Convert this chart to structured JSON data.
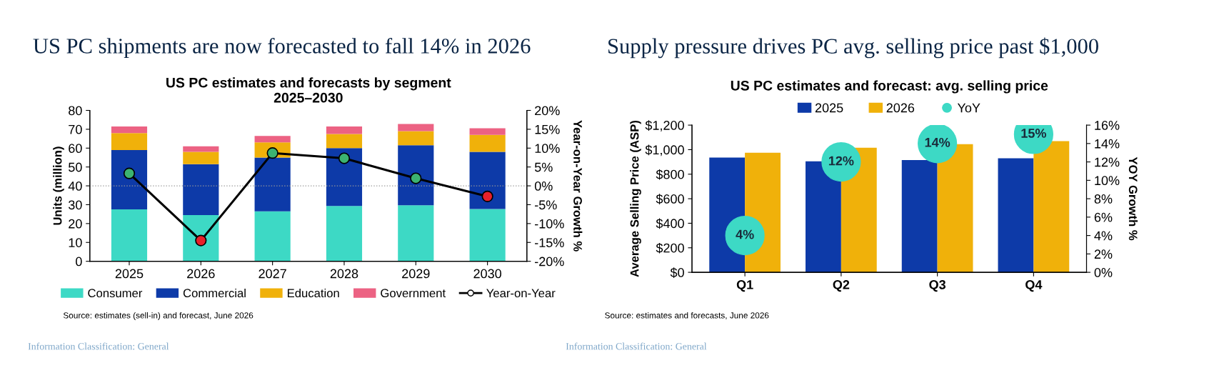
{
  "chart_data": [
    {
      "type": "bar",
      "title": "US PC shipments are now forecasted to fall 14% in 2026",
      "subtitle": "US PC estimates and forecasts by segment\n2025–2030",
      "ylabel": "Units (million)",
      "y2label": "Year-on-Year Growth %",
      "categories": [
        "2025",
        "2026",
        "2027",
        "2028",
        "2029",
        "2030"
      ],
      "stacked": true,
      "series": [
        {
          "name": "Consumer",
          "color": "#3dd9c5",
          "values": [
            27.5,
            24.5,
            26.5,
            29.3,
            29.7,
            27.7
          ]
        },
        {
          "name": "Commercial",
          "color": "#0d3aa8",
          "values": [
            31.5,
            27,
            28.5,
            30.7,
            31.8,
            30.3
          ]
        },
        {
          "name": "Education",
          "color": "#f0b10a",
          "values": [
            9,
            6.5,
            8,
            7.5,
            7.5,
            9
          ]
        },
        {
          "name": "Government",
          "color": "#ec6283",
          "values": [
            3.5,
            3,
            3.5,
            4,
            3.8,
            3.5
          ]
        },
        {
          "name": "Year-on-Year",
          "type": "line",
          "axis": "y2",
          "color": "#000000",
          "marker": "circle",
          "colors": [
            "#3cb371",
            "#e8202a",
            "#3cb371",
            "#3cb371",
            "#3cb371",
            "#e8202a"
          ],
          "values": [
            3.3,
            -14.5,
            8.7,
            7.3,
            2,
            -2.8
          ]
        }
      ],
      "ylim": [
        0,
        80
      ],
      "yticks": [
        0,
        10,
        20,
        30,
        40,
        50,
        60,
        70,
        80
      ],
      "y2lim": [
        -20,
        20
      ],
      "y2ticks": [
        {
          "value": -20,
          "label": "-20%"
        },
        {
          "value": -15,
          "label": "-15%"
        },
        {
          "value": -10,
          "label": "-10%"
        },
        {
          "value": -5,
          "label": "-5%"
        },
        {
          "value": 0,
          "label": "0%"
        },
        {
          "value": 5,
          "label": "5%"
        },
        {
          "value": 10,
          "label": "10%"
        },
        {
          "value": 15,
          "label": "15%"
        },
        {
          "value": 20,
          "label": "20%"
        }
      ],
      "ref_lines": [
        {
          "axis": "y2",
          "value": 0,
          "color": "#999999",
          "line_style": "dotted"
        }
      ],
      "legend": "bottom",
      "annotations": [
        "Source: estimates (sell-in) and forecast, June 2026",
        "Information Classification: General"
      ]
    },
    {
      "type": "bar",
      "title": "Supply pressure drives PC avg. selling price past $1,000",
      "subtitle": "US PC estimates and forecast: avg. selling price",
      "ylabel": "Average Selling Price (ASP)",
      "y2label": "YOY Growth %",
      "categories": [
        "Q1",
        "Q2",
        "Q3",
        "Q4"
      ],
      "series": [
        {
          "name": "2025",
          "color": "#0d3aa8",
          "values": [
            935,
            905,
            915,
            930
          ]
        },
        {
          "name": "2026",
          "color": "#f0b10a",
          "values": [
            975,
            1015,
            1045,
            1070
          ]
        },
        {
          "name": "YoY",
          "type": "scatter",
          "axis": "y2",
          "color": "#3dd9c5",
          "marker": "circle",
          "values": [
            4,
            12,
            14,
            15
          ],
          "value_labels": [
            "4%",
            "12%",
            "14%",
            "15%"
          ]
        }
      ],
      "ylim": [
        0,
        1200
      ],
      "yticks": [
        {
          "value": 0,
          "label": "$0"
        },
        {
          "value": 200,
          "label": "$200"
        },
        {
          "value": 400,
          "label": "$400"
        },
        {
          "value": 600,
          "label": "$600"
        },
        {
          "value": 800,
          "label": "$800"
        },
        {
          "value": 1000,
          "label": "$1,000"
        },
        {
          "value": 1200,
          "label": "$1,200"
        }
      ],
      "y2lim": [
        0,
        16
      ],
      "y2ticks": [
        {
          "value": 0,
          "label": "0%"
        },
        {
          "value": 2,
          "label": "2%"
        },
        {
          "value": 4,
          "label": "4%"
        },
        {
          "value": 6,
          "label": "6%"
        },
        {
          "value": 8,
          "label": "8%"
        },
        {
          "value": 10,
          "label": "10%"
        },
        {
          "value": 12,
          "label": "12%"
        },
        {
          "value": 14,
          "label": "14%"
        },
        {
          "value": 16,
          "label": "16%"
        }
      ],
      "legend": "top",
      "annotations": [
        "Source: estimates and forecasts, June 2026",
        "Information Classification: General"
      ]
    }
  ]
}
